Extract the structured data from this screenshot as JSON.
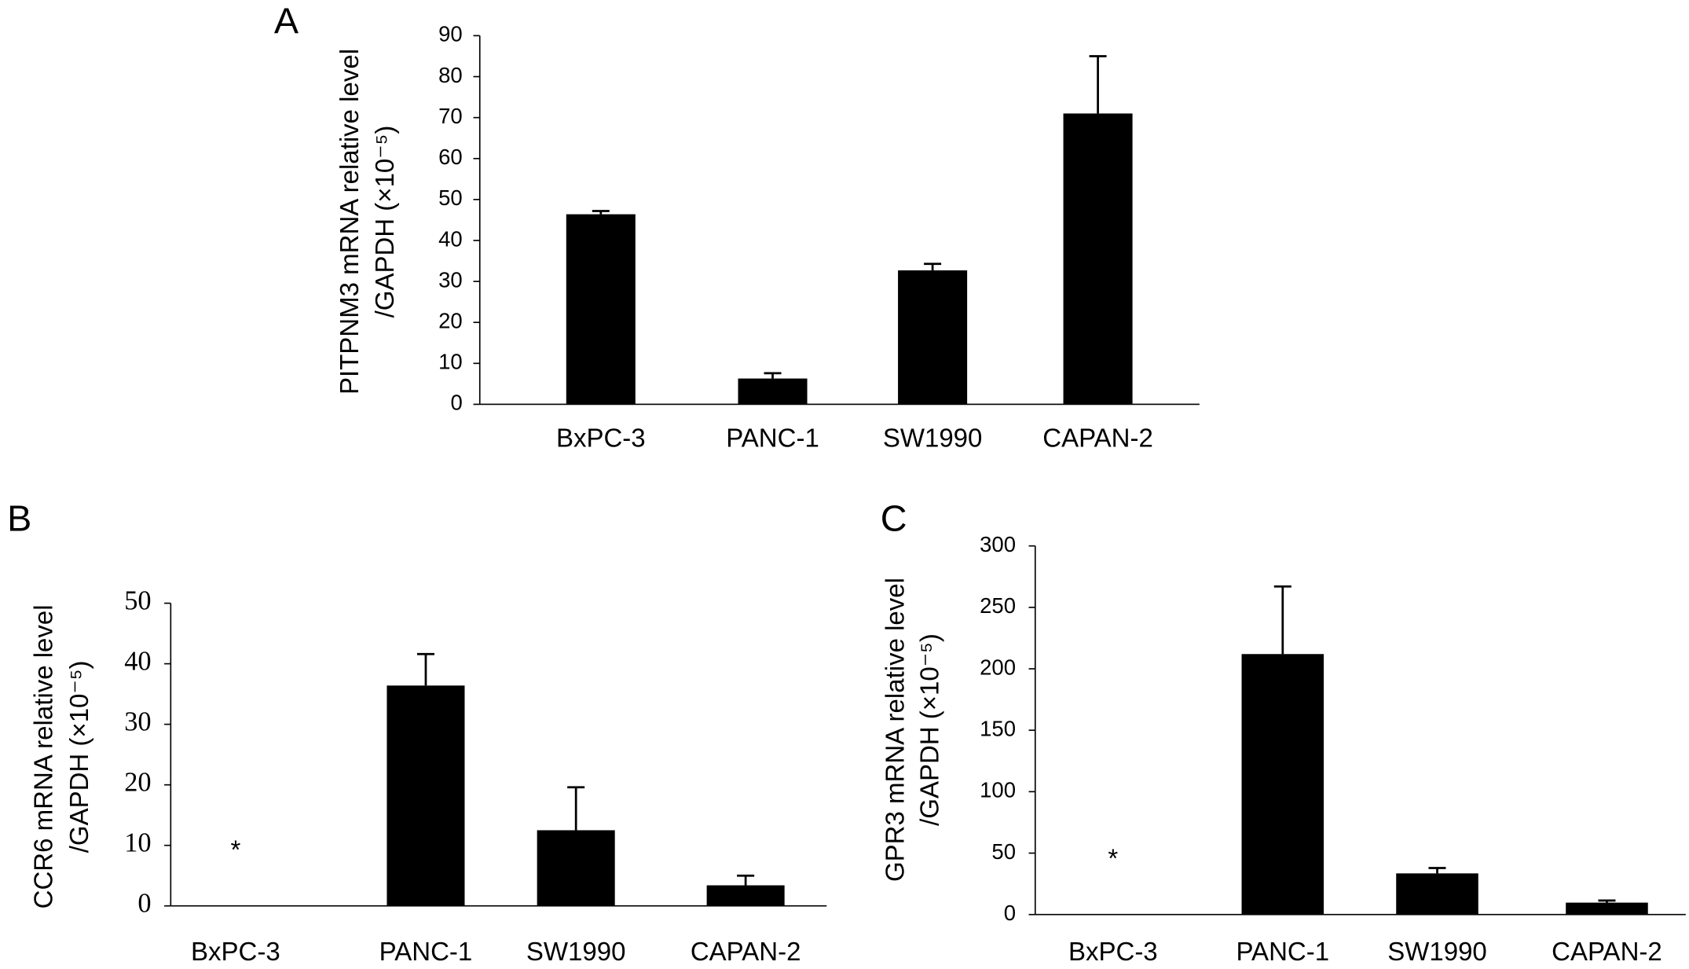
{
  "chart_data": [
    {
      "type": "bar",
      "panel_label": "A",
      "y_label": [
        "PITPNM3 mRNA relative level",
        "/GAPDH (×10⁻⁵)"
      ],
      "categories": [
        "BxPC-3",
        "PANC-1",
        "SW1990",
        "CAPAN-2"
      ],
      "values": [
        46.4,
        6.3,
        32.7,
        71
      ],
      "errors": [
        0.8,
        1.3,
        1.6,
        14
      ],
      "color": "#000000",
      "ylim": [
        0,
        90
      ],
      "yticks": [
        0,
        10,
        20,
        30,
        40,
        50,
        60,
        70,
        80,
        90
      ]
    },
    {
      "type": "bar",
      "panel_label": "B",
      "y_label": [
        "CCR6 mRNA relative level",
        "/GAPDH (×10⁻⁵)"
      ],
      "categories": [
        "BxPC-3",
        "PANC-1",
        "SW1990",
        "CAPAN-2"
      ],
      "values": [
        null,
        36.4,
        12.5,
        3.4
      ],
      "errors": [
        null,
        5.2,
        7.1,
        1.6
      ],
      "annotation": "*",
      "color": "#000000",
      "ylim": [
        0,
        50
      ],
      "yticks": [
        0,
        10,
        20,
        30,
        40,
        50
      ]
    },
    {
      "type": "bar",
      "panel_label": "C",
      "y_label": [
        "GPR3 mRNA relative level",
        "/GAPDH (×10⁻⁵)"
      ],
      "categories": [
        "BxPC-3",
        "PANC-1",
        "SW1990",
        "CAPAN-2"
      ],
      "values": [
        null,
        212,
        33.5,
        9.7
      ],
      "errors": [
        null,
        55,
        4.4,
        1.7
      ],
      "annotation": "*",
      "color": "#000000",
      "ylim": [
        0,
        300
      ],
      "yticks": [
        0,
        50,
        100,
        150,
        200,
        250,
        300
      ]
    }
  ]
}
